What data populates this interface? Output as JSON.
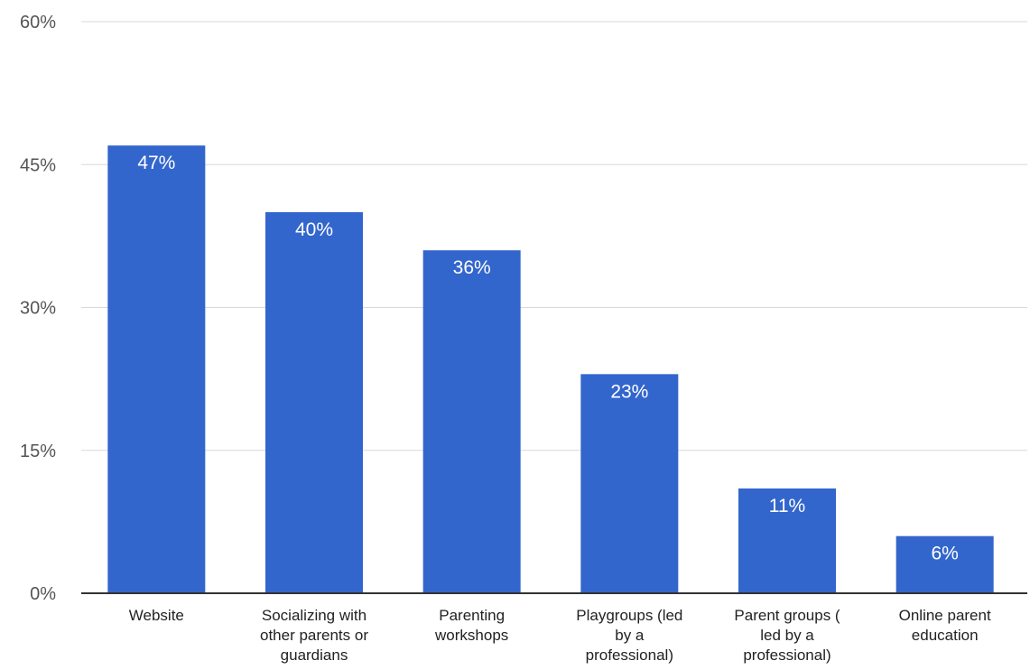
{
  "chart_data": {
    "type": "bar",
    "title": "",
    "xlabel": "",
    "ylabel": "",
    "categories": [
      [
        "Website"
      ],
      [
        "Socializing with",
        "other parents or",
        "guardians"
      ],
      [
        "Parenting",
        "workshops"
      ],
      [
        "Playgroups (led",
        "by a",
        "professional)"
      ],
      [
        "Parent groups (",
        "led by a",
        "professional)"
      ],
      [
        "Online parent",
        "education"
      ]
    ],
    "values": [
      47,
      40,
      36,
      23,
      11,
      6
    ],
    "value_labels": [
      "47%",
      "40%",
      "36%",
      "23%",
      "11%",
      "6%"
    ],
    "ylim": [
      0,
      60
    ],
    "yticks": [
      0,
      15,
      30,
      45,
      60
    ],
    "ytick_labels": [
      "0%",
      "15%",
      "30%",
      "45%",
      "60%"
    ],
    "grid": true,
    "colors": {
      "bar": "#3366cc",
      "grid": "#d9d9d9",
      "axis": "#333333"
    }
  }
}
